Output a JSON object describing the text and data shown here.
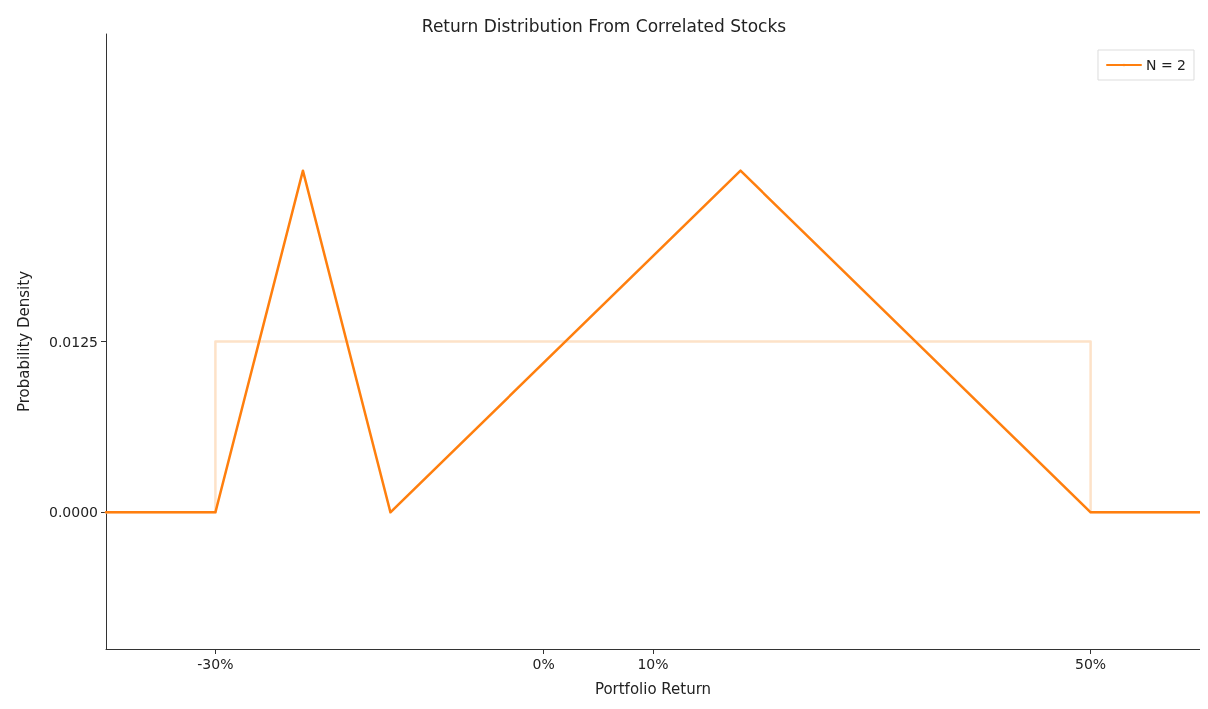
{
  "chart_data": {
    "type": "line",
    "title": "Return Distribution From Correlated Stocks",
    "xlabel": "Portfolio Return",
    "ylabel": "Probability Density",
    "series": [
      {
        "color": "#fde2c8",
        "x": [
          -40,
          -30,
          -30,
          50,
          50,
          60
        ],
        "values": [
          0,
          0,
          0.0125,
          0.0125,
          0,
          0
        ]
      },
      {
        "name": "N = 2",
        "color": "#ff7f0e",
        "x": [
          -40,
          -30,
          -22,
          -14,
          18,
          50,
          60
        ],
        "values": [
          0,
          0,
          0.025,
          0,
          0.025,
          0,
          0
        ]
      }
    ],
    "xlim": [
      -40,
      60
    ],
    "xticks": [
      {
        "value": -30,
        "label": "-30%"
      },
      {
        "value": 0,
        "label": "0%"
      },
      {
        "value": 10,
        "label": "10%"
      },
      {
        "value": 50,
        "label": "50%"
      }
    ],
    "ylim": [
      -0.01,
      0.035
    ],
    "yticks": [
      {
        "value": 0,
        "label": "0.0000"
      },
      {
        "value": 0.0125,
        "label": "0.0125"
      }
    ],
    "grid": false,
    "legend": "top right",
    "marker": "none",
    "line_style": "solid"
  }
}
